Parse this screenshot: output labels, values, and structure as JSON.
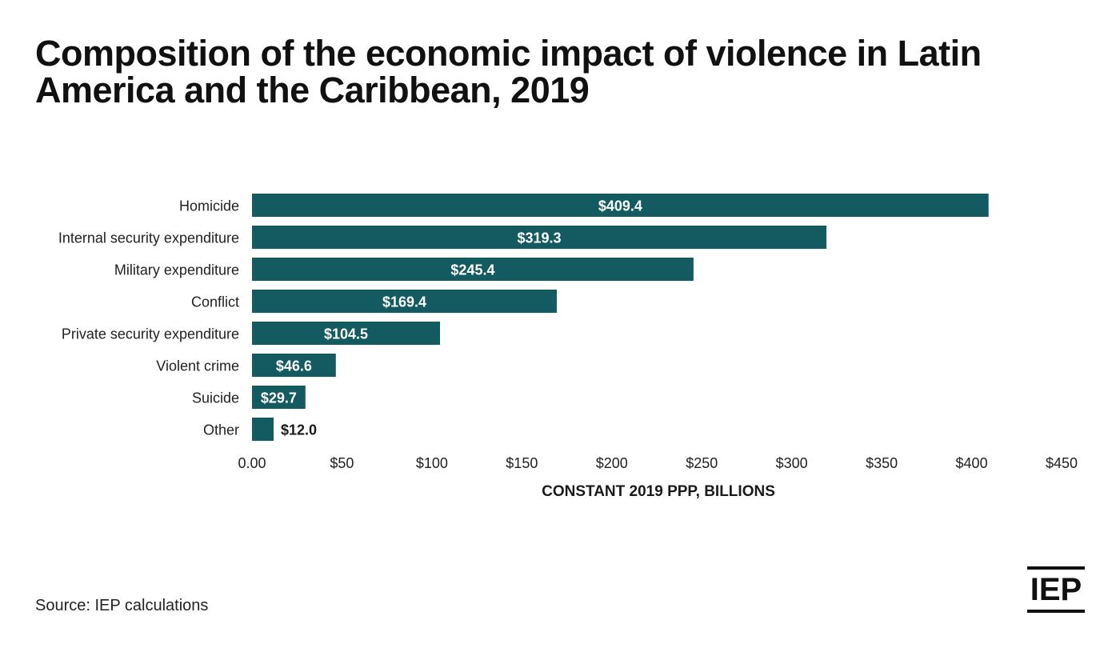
{
  "title": "Composition of the economic impact of violence in Latin America and the Caribbean, 2019",
  "source": "Source: IEP calculations",
  "logo_text": "IEP",
  "colors": {
    "bar": "#135b61",
    "text": "#1a1a1a"
  },
  "chart_data": {
    "type": "bar",
    "orientation": "horizontal",
    "categories": [
      "Homicide",
      "Internal security expenditure",
      "Military expenditure",
      "Conflict",
      "Private security expenditure",
      "Violent crime",
      "Suicide",
      "Other"
    ],
    "values": [
      409.4,
      319.3,
      245.4,
      169.4,
      104.5,
      46.6,
      29.7,
      12.0
    ],
    "data_labels": [
      "$409.4",
      "$319.3",
      "$245.4",
      "$169.4",
      "$104.5",
      "$46.6",
      "$29.7",
      "$12.0"
    ],
    "xlabel": "CONSTANT 2019 PPP, BILLIONS",
    "ylabel": "",
    "xlim": [
      0,
      450
    ],
    "x_ticks": [
      0,
      50,
      100,
      150,
      200,
      250,
      300,
      350,
      400,
      450
    ],
    "x_tick_labels": [
      "0.00",
      "$50",
      "$100",
      "$150",
      "$200",
      "$250",
      "$300",
      "$350",
      "$400",
      "$450"
    ],
    "grid": false,
    "legend": "none"
  }
}
